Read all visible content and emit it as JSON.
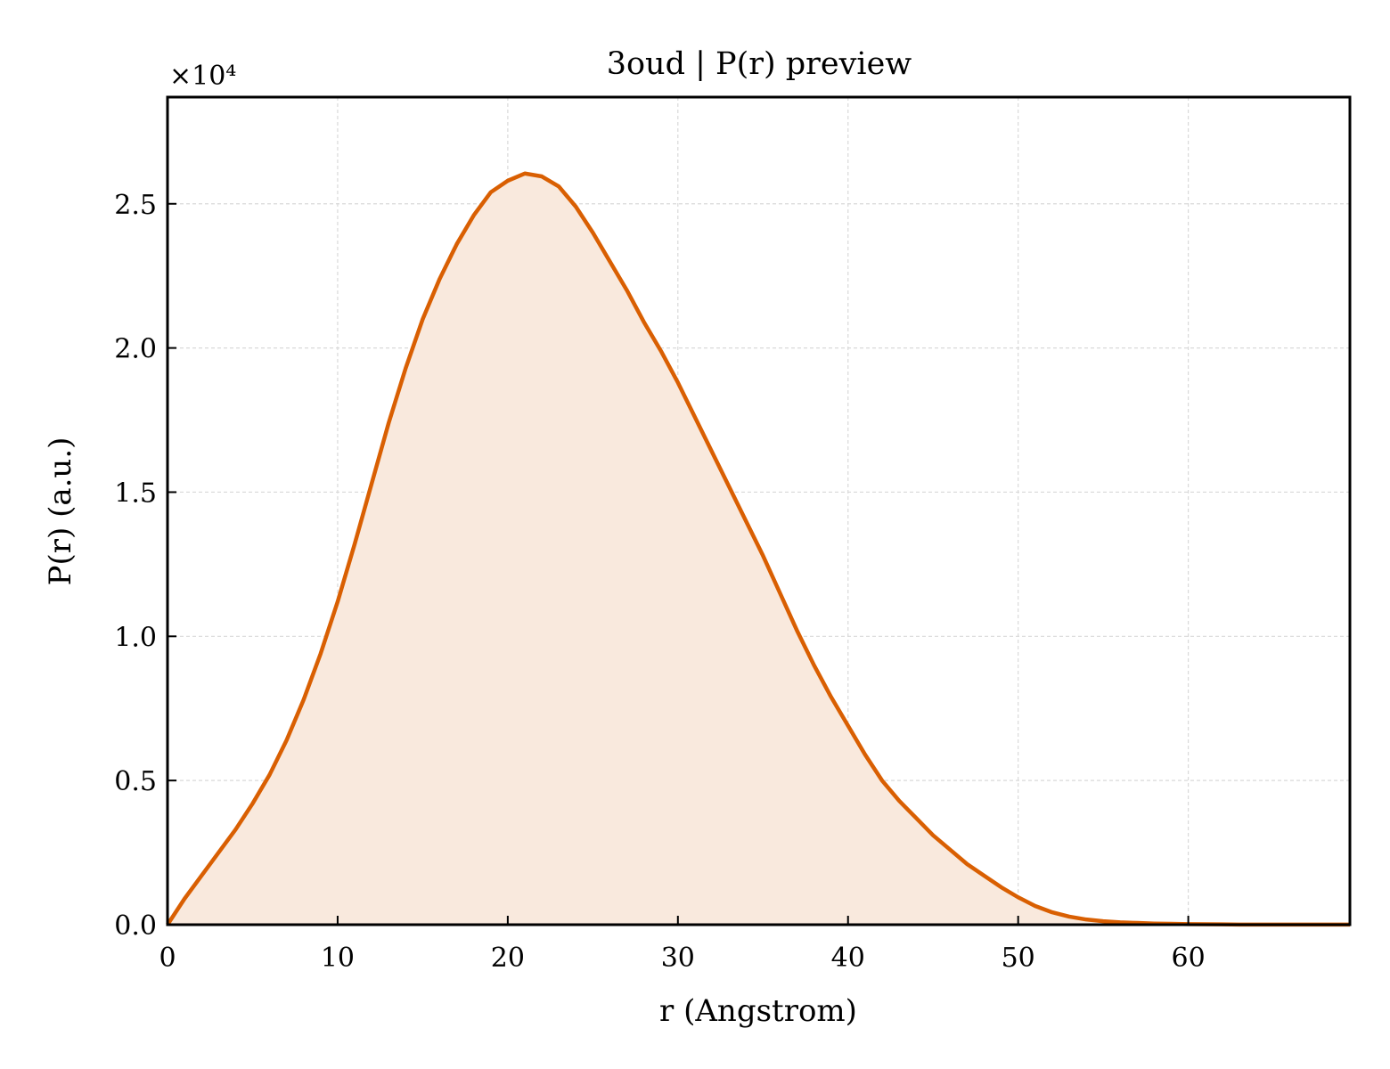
{
  "chart_data": {
    "type": "area",
    "title": "3oud | P(r) preview",
    "xlabel": "r (Angstrom)",
    "ylabel": "P(r) (a.u.)",
    "y_offset_label": "×10⁴",
    "y_scale": 10000,
    "xlim": [
      0,
      69.5
    ],
    "ylim": [
      0,
      28700
    ],
    "xticks": [
      0,
      10,
      20,
      30,
      40,
      50,
      60
    ],
    "yticks": [
      0,
      5000,
      10000,
      15000,
      20000,
      25000
    ],
    "ytick_labels": [
      "0.0",
      "0.5",
      "1.0",
      "1.5",
      "2.0",
      "2.5"
    ],
    "grid": true,
    "colors": {
      "line": "#d95f02",
      "fill": "#f9e9dd"
    },
    "series": [
      {
        "x": [
          0,
          1,
          2,
          3,
          4,
          5,
          6,
          7,
          8,
          9,
          10,
          11,
          12,
          13,
          14,
          15,
          16,
          17,
          18,
          19,
          20,
          21,
          22,
          23,
          24,
          25,
          26,
          27,
          28,
          29,
          30,
          31,
          32,
          33,
          34,
          35,
          36,
          37,
          38,
          39,
          40,
          41,
          42,
          43,
          44,
          45,
          46,
          47,
          48,
          49,
          50,
          51,
          52,
          53,
          54,
          55,
          56,
          57,
          58,
          59,
          60,
          61,
          62,
          63,
          64,
          65,
          66,
          67,
          68,
          69,
          69.5
        ],
        "y": [
          0,
          900,
          1700,
          2500,
          3300,
          4200,
          5200,
          6400,
          7800,
          9400,
          11200,
          13200,
          15300,
          17400,
          19300,
          21000,
          22400,
          23600,
          24600,
          25400,
          25800,
          26050,
          25950,
          25600,
          24900,
          24000,
          23000,
          22000,
          20900,
          19900,
          18800,
          17600,
          16400,
          15200,
          14000,
          12800,
          11500,
          10200,
          9000,
          7900,
          6900,
          5900,
          5000,
          4300,
          3700,
          3100,
          2600,
          2100,
          1700,
          1300,
          950,
          650,
          430,
          280,
          180,
          120,
          80,
          60,
          40,
          30,
          20,
          15,
          10,
          5,
          5,
          5,
          5,
          5,
          5,
          5,
          5
        ]
      }
    ]
  }
}
